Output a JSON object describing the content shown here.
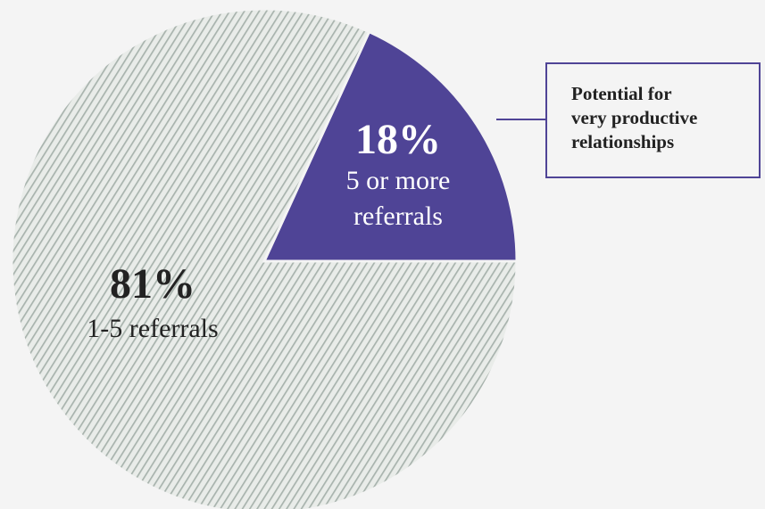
{
  "chart_data": {
    "type": "pie",
    "slices": [
      {
        "percent_label": "18%",
        "label": "5 or more\nreferrals",
        "value": 18,
        "color": "#4f4496",
        "pattern": "solid"
      },
      {
        "percent_label": "81%",
        "label": "1-5 referrals",
        "value": 81,
        "color": "#a8b3ad",
        "pattern": "diagonal-hatch"
      }
    ]
  },
  "callout": {
    "text": "Potential for\nvery productive\nrelationships",
    "border_color": "#4f4496"
  },
  "colors": {
    "background": "#f4f4f4",
    "accent": "#4f4496",
    "hatch_stroke": "#a8b3ad",
    "hatch_bg": "#e9ece9"
  }
}
